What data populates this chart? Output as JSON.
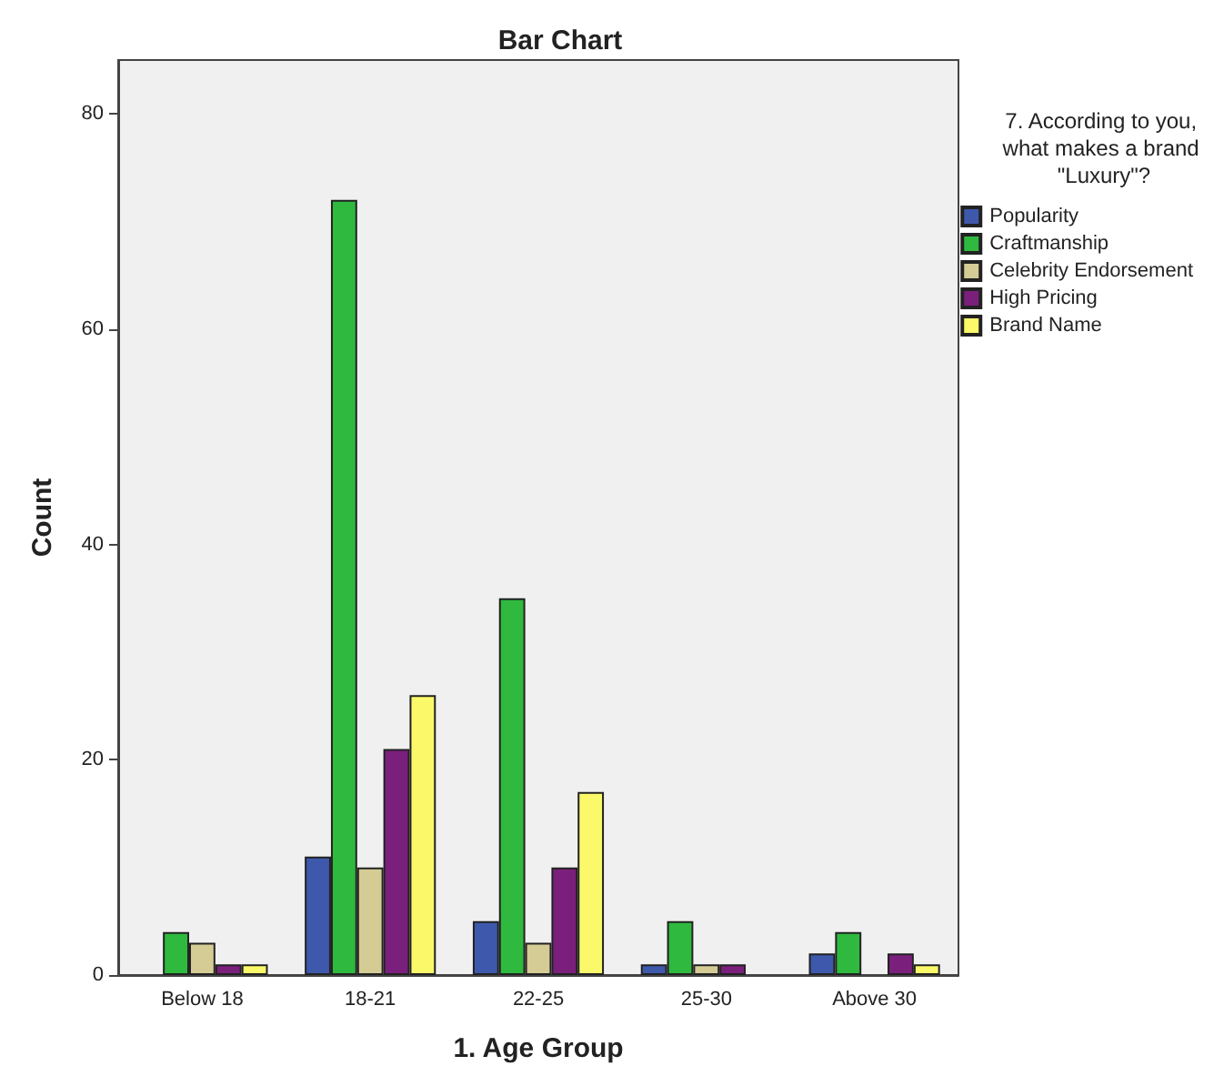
{
  "chart_data": {
    "type": "bar",
    "title": "Bar Chart",
    "xlabel": "1. Age Group",
    "ylabel": "Count",
    "legend_title": "7. According to you, what makes a brand \"Luxury\"?",
    "categories": [
      "Below 18",
      "18-21",
      "22-25",
      "25-30",
      "Above 30"
    ],
    "series": [
      {
        "name": "Popularity",
        "color": "#3e58ac",
        "values": [
          null,
          11,
          5,
          1,
          2
        ]
      },
      {
        "name": "Craftmanship",
        "color": "#2fb93f",
        "values": [
          4,
          72,
          35,
          5,
          4
        ]
      },
      {
        "name": "Celebrity Endorsement",
        "color": "#d4cc94",
        "values": [
          3,
          10,
          3,
          1,
          null
        ]
      },
      {
        "name": "High Pricing",
        "color": "#7b1f7c",
        "values": [
          1,
          21,
          10,
          1,
          2
        ]
      },
      {
        "name": "Brand Name",
        "color": "#fbf96a",
        "values": [
          1,
          26,
          17,
          null,
          1
        ]
      }
    ],
    "ylim": [
      0,
      85
    ],
    "yticks": [
      0,
      20,
      40,
      60,
      80
    ],
    "grid": false,
    "legend": "right"
  }
}
